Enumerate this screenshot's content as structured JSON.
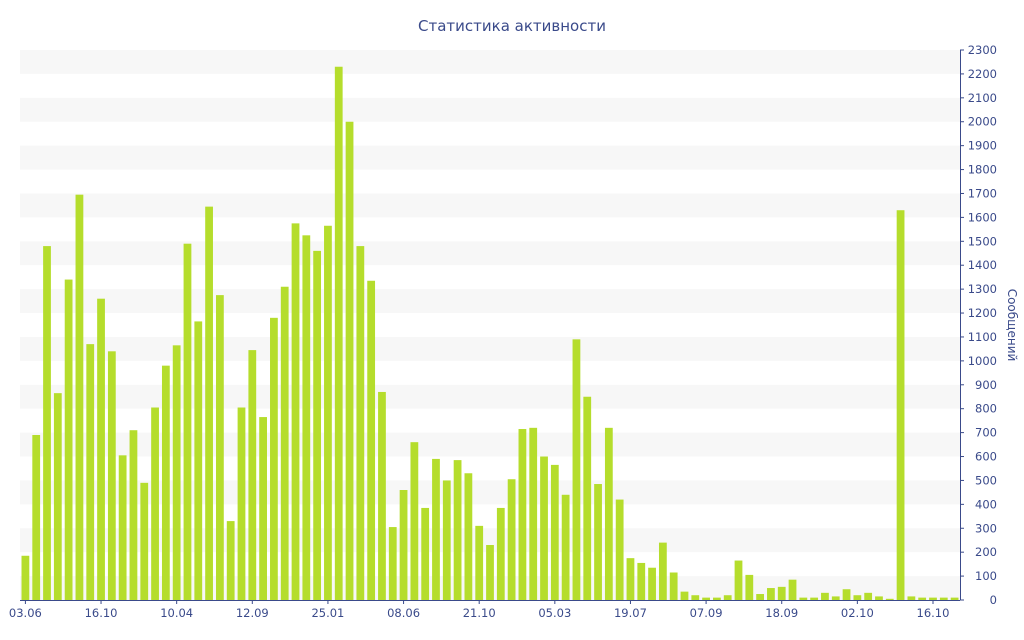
{
  "chart_data": {
    "type": "bar",
    "title": "Статистика активности",
    "xlabel": "",
    "ylabel": "Сообщений",
    "ylim": [
      0,
      2300
    ],
    "y_ticks": [
      0,
      100,
      200,
      300,
      400,
      500,
      600,
      700,
      800,
      900,
      1000,
      1100,
      1200,
      1300,
      1400,
      1500,
      1600,
      1700,
      1800,
      1900,
      2000,
      2100,
      2200,
      2300
    ],
    "y_axis_side": "right",
    "x_tick_labels": [
      {
        "index": 0,
        "label": "03.06"
      },
      {
        "index": 7,
        "label": "16.10"
      },
      {
        "index": 14,
        "label": "10.04"
      },
      {
        "index": 21,
        "label": "12.09"
      },
      {
        "index": 28,
        "label": "25.01"
      },
      {
        "index": 35,
        "label": "08.06"
      },
      {
        "index": 42,
        "label": "21.10"
      },
      {
        "index": 49,
        "label": "05.03"
      },
      {
        "index": 56,
        "label": "19.07"
      },
      {
        "index": 63,
        "label": "07.09"
      },
      {
        "index": 70,
        "label": "18.09"
      },
      {
        "index": 77,
        "label": "02.10"
      },
      {
        "index": 84,
        "label": "16.10"
      }
    ],
    "values": [
      185,
      690,
      1480,
      865,
      1340,
      1695,
      1070,
      1260,
      1040,
      605,
      710,
      490,
      805,
      980,
      1065,
      1490,
      1165,
      1645,
      1275,
      330,
      805,
      1045,
      765,
      1180,
      1310,
      1575,
      1525,
      1460,
      1565,
      2230,
      2000,
      1480,
      1335,
      870,
      305,
      460,
      660,
      385,
      590,
      500,
      585,
      530,
      310,
      230,
      385,
      505,
      715,
      720,
      600,
      565,
      440,
      1090,
      850,
      485,
      720,
      420,
      175,
      155,
      135,
      240,
      115,
      35,
      20,
      10,
      10,
      20,
      165,
      105,
      25,
      50,
      55,
      85,
      10,
      10,
      30,
      15,
      45,
      20,
      30,
      15,
      5,
      1630,
      15,
      10,
      10,
      10,
      10
    ],
    "grid": "alternating-bands",
    "colors": {
      "bar": "#b5dd2c",
      "text": "#3a4a8a",
      "band": "#f7f7f7"
    }
  }
}
